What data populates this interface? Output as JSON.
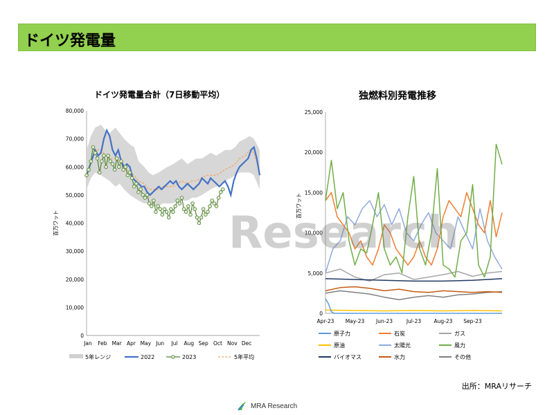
{
  "header": {
    "title": "ドイツ発電量"
  },
  "source_note": "出所：MRAリサーチ",
  "watermark": "Research",
  "footer": {
    "logo_text": "MRA Research"
  },
  "colors": {
    "header_bg": "#92d050",
    "range": "#d0d0d0",
    "y2022": "#4472c4",
    "y2023": "#548235",
    "avg5": "#f4a460",
    "nuclear": "#5b9bd5",
    "coal": "#ed7d31",
    "gas": "#a5a5a5",
    "oil": "#ffc000",
    "solar": "#8faadc",
    "wind": "#70ad47",
    "biomass": "#203864",
    "hydro": "#c55a11",
    "other": "#7f7f7f"
  },
  "chart_data": [
    {
      "type": "line",
      "title": "ドイツ発電量合計（7日移動平均）",
      "ylabel": "百万ワット",
      "ylim": [
        0,
        80000
      ],
      "yticks": [
        "0",
        "10,000",
        "20,000",
        "30,000",
        "40,000",
        "50,000",
        "60,000",
        "70,000",
        "80,000"
      ],
      "xticks": [
        "Jan",
        "Feb",
        "Mar",
        "Apr",
        "May",
        "Jun",
        "Jul",
        "Aug",
        "Sep",
        "Oct",
        "Nov",
        "Dec"
      ],
      "x_unit": "month",
      "legend": [
        "5年レンジ",
        "2022",
        "2023",
        "5年平均"
      ],
      "range_band": {
        "x": [
          0,
          0.3,
          0.6,
          1,
          1.3,
          1.6,
          2,
          2.3,
          2.6,
          3,
          3.3,
          3.6,
          4,
          4.3,
          4.6,
          5,
          5.3,
          5.6,
          6,
          6.3,
          6.6,
          7,
          7.3,
          7.6,
          8,
          8.3,
          8.6,
          9,
          9.3,
          9.6,
          10,
          10.3,
          10.6,
          11,
          11.3,
          11.6,
          12
        ],
        "low": [
          52000,
          56000,
          58000,
          57000,
          56000,
          55000,
          53000,
          54000,
          52000,
          50000,
          49000,
          48000,
          47000,
          47000,
          46000,
          46000,
          47000,
          47000,
          47000,
          48000,
          48000,
          48000,
          49000,
          49000,
          50000,
          51000,
          52000,
          53000,
          54000,
          55000,
          56000,
          57000,
          58000,
          58000,
          58000,
          57000,
          52000
        ],
        "high": [
          66000,
          71000,
          74000,
          75000,
          73000,
          72000,
          74000,
          72000,
          70000,
          68000,
          67000,
          62000,
          60000,
          58000,
          57000,
          58000,
          59000,
          60000,
          61000,
          62000,
          63000,
          61000,
          62000,
          63000,
          63000,
          64000,
          65000,
          64000,
          65000,
          66000,
          66000,
          67000,
          69000,
          70000,
          71000,
          70000,
          66000
        ]
      },
      "series": [
        {
          "name": "2022",
          "x": [
            0,
            0.2,
            0.4,
            0.6,
            0.8,
            1,
            1.2,
            1.4,
            1.6,
            1.8,
            2,
            2.2,
            2.4,
            2.6,
            2.8,
            3,
            3.2,
            3.4,
            3.6,
            3.8,
            4,
            4.2,
            4.4,
            4.6,
            4.8,
            5,
            5.2,
            5.4,
            5.6,
            5.8,
            6,
            6.2,
            6.4,
            6.6,
            6.8,
            7,
            7.2,
            7.4,
            7.6,
            7.8,
            8,
            8.2,
            8.4,
            8.6,
            8.8,
            9,
            9.2,
            9.4,
            9.6,
            9.8,
            10,
            10.2,
            10.4,
            10.6,
            10.8,
            11,
            11.2,
            11.4,
            11.6,
            11.8,
            12
          ],
          "values": [
            57000,
            60000,
            63000,
            66000,
            64000,
            65000,
            70000,
            73000,
            71000,
            66000,
            64000,
            66000,
            62000,
            60000,
            61000,
            60000,
            56000,
            55000,
            54000,
            53000,
            53000,
            51000,
            50000,
            51000,
            52000,
            53000,
            52000,
            53000,
            54000,
            55000,
            54000,
            55000,
            53000,
            52000,
            53000,
            54000,
            53000,
            52000,
            53000,
            54000,
            56000,
            55000,
            54000,
            56000,
            55000,
            54000,
            53000,
            54000,
            55000,
            53000,
            50000,
            55000,
            58000,
            60000,
            61000,
            62000,
            63000,
            66000,
            67000,
            63000,
            57000
          ]
        },
        {
          "name": "2023",
          "x": [
            0,
            0.15,
            0.3,
            0.45,
            0.6,
            0.75,
            0.9,
            1.05,
            1.2,
            1.35,
            1.5,
            1.65,
            1.8,
            1.95,
            2.1,
            2.25,
            2.4,
            2.55,
            2.7,
            2.85,
            3,
            3.15,
            3.3,
            3.45,
            3.6,
            3.75,
            3.9,
            4.05,
            4.2,
            4.35,
            4.5,
            4.65,
            4.8,
            4.95,
            5.1,
            5.25,
            5.4,
            5.55,
            5.7,
            5.85,
            6,
            6.15,
            6.3,
            6.45,
            6.6,
            6.75,
            6.9,
            7.05,
            7.2,
            7.35,
            7.5,
            7.65,
            7.8,
            7.95,
            8.1,
            8.25,
            8.4,
            8.55,
            8.7,
            8.85,
            9,
            9.15,
            9.3,
            9.45
          ],
          "values": [
            57000,
            59000,
            62000,
            67000,
            65000,
            63000,
            58000,
            62000,
            64000,
            60000,
            64000,
            62000,
            61000,
            59000,
            63000,
            60000,
            62000,
            59000,
            60000,
            57000,
            58000,
            56000,
            53000,
            54000,
            51000,
            52000,
            50000,
            49000,
            50000,
            47000,
            46000,
            48000,
            44000,
            46000,
            45000,
            43000,
            45000,
            44000,
            42000,
            45000,
            44000,
            46000,
            48000,
            47000,
            49000,
            45000,
            44000,
            46000,
            43000,
            47000,
            45000,
            42000,
            40000,
            42000,
            45000,
            43000,
            44000,
            46000,
            48000,
            47000,
            46000,
            49000,
            51000,
            52000
          ]
        },
        {
          "name": "5年平均",
          "x": [
            0,
            0.3,
            0.6,
            1,
            1.3,
            1.6,
            2,
            2.3,
            2.6,
            3,
            3.3,
            3.6,
            4,
            4.3,
            4.6,
            5,
            5.3,
            5.6,
            6,
            6.3,
            6.6,
            7,
            7.3,
            7.6,
            8,
            8.3,
            8.6,
            9,
            9.3,
            9.6,
            10,
            10.3,
            10.6,
            11,
            11.3,
            11.6,
            12
          ],
          "values": [
            56000,
            62000,
            66000,
            66000,
            64000,
            63000,
            63000,
            62000,
            60000,
            58000,
            57000,
            55000,
            54000,
            52000,
            52000,
            52000,
            53000,
            53000,
            53000,
            54000,
            55000,
            54000,
            55000,
            55000,
            56000,
            57000,
            57000,
            57000,
            58000,
            59000,
            60000,
            61000,
            63000,
            64000,
            66000,
            65000,
            58000
          ]
        }
      ]
    },
    {
      "type": "line",
      "title": "独燃料別発電推移",
      "ylabel": "百万ワット",
      "ylim": [
        0,
        25000
      ],
      "yticks": [
        "0",
        "5,000",
        "10,000",
        "15,000",
        "20,000",
        "25,000"
      ],
      "xticks": [
        "Apr-23",
        "May-23",
        "Jun-23",
        "Jul-23",
        "Aug-23",
        "Sep-23"
      ],
      "x_unit": "month",
      "series": [
        {
          "name": "原子力",
          "x": [
            0,
            0.1,
            0.2,
            0.3,
            0.4,
            6
          ],
          "values": [
            1800,
            1200,
            200,
            0,
            0,
            0
          ]
        },
        {
          "name": "石炭",
          "x": [
            0,
            0.2,
            0.4,
            0.6,
            0.8,
            1,
            1.2,
            1.4,
            1.6,
            1.8,
            2,
            2.2,
            2.4,
            2.6,
            2.8,
            3,
            3.2,
            3.4,
            3.6,
            3.8,
            4,
            4.2,
            4.4,
            4.6,
            4.8,
            5,
            5.2,
            5.4,
            5.6,
            5.8,
            6
          ],
          "values": [
            14000,
            15000,
            12000,
            11000,
            10000,
            8000,
            9000,
            7000,
            6000,
            8000,
            11000,
            10000,
            8000,
            7000,
            6000,
            7000,
            9000,
            7000,
            6000,
            8000,
            12000,
            14000,
            13000,
            12000,
            15000,
            13000,
            11000,
            10000,
            14000,
            9500,
            12500
          ]
        },
        {
          "name": "ガス",
          "x": [
            0,
            0.5,
            1,
            1.5,
            2,
            2.5,
            3,
            3.5,
            4,
            4.5,
            5,
            5.5,
            6
          ],
          "values": [
            5000,
            5500,
            4500,
            4000,
            4800,
            5000,
            4200,
            4500,
            4800,
            5200,
            4600,
            5000,
            5200
          ]
        },
        {
          "name": "原油",
          "x": [
            0,
            1,
            2,
            3,
            4,
            5,
            6
          ],
          "values": [
            400,
            350,
            300,
            350,
            300,
            350,
            300
          ]
        },
        {
          "name": "太陽光",
          "x": [
            0,
            0.25,
            0.5,
            0.75,
            1,
            1.25,
            1.5,
            1.75,
            2,
            2.25,
            2.5,
            2.75,
            3,
            3.25,
            3.5,
            3.75,
            4,
            4.25,
            4.5,
            4.75,
            5,
            5.25,
            5.5,
            5.75,
            6
          ],
          "values": [
            5000,
            8000,
            9000,
            12000,
            11000,
            13000,
            14000,
            12000,
            13500,
            11000,
            13000,
            10000,
            9000,
            11000,
            12500,
            10000,
            9000,
            8000,
            12000,
            10000,
            8000,
            13000,
            9000,
            7000,
            5500
          ]
        },
        {
          "name": "風力",
          "x": [
            0,
            0.2,
            0.4,
            0.6,
            0.8,
            1,
            1.2,
            1.4,
            1.6,
            1.8,
            2,
            2.2,
            2.4,
            2.6,
            2.8,
            3,
            3.2,
            3.4,
            3.6,
            3.8,
            4,
            4.2,
            4.4,
            4.6,
            4.8,
            5,
            5.2,
            5.4,
            5.6,
            5.8,
            6
          ],
          "values": [
            14000,
            19000,
            13000,
            15000,
            9000,
            6000,
            8000,
            7500,
            11000,
            15000,
            8000,
            6000,
            7000,
            5000,
            12000,
            17000,
            8000,
            6000,
            10000,
            18000,
            6000,
            5500,
            4500,
            9000,
            10000,
            16000,
            6000,
            4500,
            7000,
            21000,
            18500
          ]
        },
        {
          "name": "バイオマス",
          "x": [
            0,
            1,
            2,
            3,
            4,
            5,
            6
          ],
          "values": [
            4300,
            4200,
            4100,
            4000,
            4000,
            4100,
            4300
          ]
        },
        {
          "name": "水力",
          "x": [
            0,
            0.5,
            1,
            1.5,
            2,
            2.5,
            3,
            3.5,
            4,
            4.5,
            5,
            5.5,
            6
          ],
          "values": [
            2800,
            3200,
            3300,
            3100,
            2800,
            3000,
            2700,
            2600,
            2800,
            2700,
            2600,
            2700,
            2600
          ]
        },
        {
          "name": "その他",
          "x": [
            0,
            0.5,
            1,
            1.5,
            2,
            2.5,
            3,
            3.5,
            4,
            4.5,
            5,
            5.5,
            6
          ],
          "values": [
            2500,
            2800,
            2600,
            2400,
            2000,
            1700,
            2000,
            2200,
            2000,
            2300,
            2400,
            2600,
            2700
          ]
        }
      ]
    }
  ]
}
